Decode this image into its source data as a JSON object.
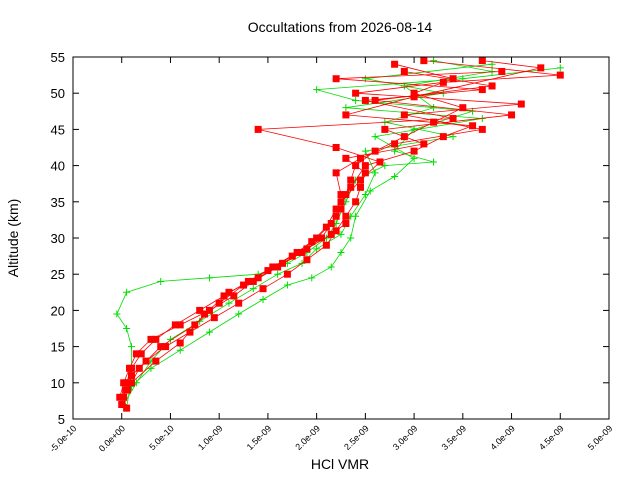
{
  "chart_data": {
    "type": "line",
    "title": "Occultations from 2026-08-14",
    "xlabel": "HCl VMR",
    "ylabel": "Altitude (km)",
    "xlim": [
      -5e-10,
      5e-09
    ],
    "ylim": [
      5,
      55
    ],
    "xticks": [
      -5e-10,
      0,
      5e-10,
      1e-09,
      1.5e-09,
      2e-09,
      2.5e-09,
      3e-09,
      3.5e-09,
      4e-09,
      4.5e-09,
      5e-09
    ],
    "xtick_labels": [
      "-5.0e-10",
      "0.0e+00",
      "5.0e-10",
      "1.0e-09",
      "1.5e-09",
      "2.0e-09",
      "2.5e-09",
      "3.0e-09",
      "3.5e-09",
      "4.0e-09",
      "4.5e-09",
      "5.0e-09"
    ],
    "yticks": [
      5,
      10,
      15,
      20,
      25,
      30,
      35,
      40,
      45,
      50,
      55
    ],
    "ytick_labels": [
      "5",
      "10",
      "15",
      "20",
      "25",
      "30",
      "35",
      "40",
      "45",
      "50",
      "55"
    ],
    "grid": false,
    "legend": "none",
    "series": [
      {
        "color": "#ff0000",
        "marker": "square",
        "profiles": [
          [
            [
              5e-11,
              6.5
            ],
            [
              2e-11,
              8
            ],
            [
              5e-11,
              10
            ],
            [
              1e-10,
              12
            ],
            [
              2e-10,
              14
            ],
            [
              3.5e-10,
              16
            ],
            [
              5.5e-10,
              18
            ],
            [
              8e-10,
              20
            ],
            [
              1.05e-09,
              22
            ],
            [
              1.3e-09,
              24
            ],
            [
              1.55e-09,
              26
            ],
            [
              1.8e-09,
              28
            ],
            [
              2e-09,
              30
            ],
            [
              2.15e-09,
              32
            ],
            [
              2.25e-09,
              34
            ],
            [
              2.3e-09,
              36
            ],
            [
              2.35e-09,
              38
            ],
            [
              2.4e-09,
              40
            ],
            [
              2.6e-09,
              42
            ],
            [
              2.9e-09,
              44
            ],
            [
              3.2e-09,
              46
            ],
            [
              3.5e-09,
              48
            ],
            [
              3e-09,
              50
            ],
            [
              3.4e-09,
              52
            ],
            [
              2.8e-09,
              54
            ]
          ],
          [
            [
              0.0,
              7
            ],
            [
              4e-11,
              9
            ],
            [
              1e-10,
              11
            ],
            [
              2.5e-10,
              13
            ],
            [
              4.5e-10,
              15
            ],
            [
              7e-10,
              17
            ],
            [
              9.5e-10,
              19
            ],
            [
              1.2e-09,
              21
            ],
            [
              1.45e-09,
              23
            ],
            [
              1.7e-09,
              25
            ],
            [
              1.9e-09,
              27
            ],
            [
              2.1e-09,
              29
            ],
            [
              2.2e-09,
              31
            ],
            [
              2.3e-09,
              33
            ],
            [
              2.4e-09,
              35
            ],
            [
              2.45e-09,
              37
            ],
            [
              2.5e-09,
              39
            ],
            [
              2.3e-09,
              41
            ],
            [
              3.1e-09,
              43
            ],
            [
              2.7e-09,
              45
            ],
            [
              4e-09,
              47
            ],
            [
              2.6e-09,
              49
            ],
            [
              3.8e-09,
              51
            ],
            [
              2.9e-09,
              53
            ]
          ],
          [
            [
              -2e-11,
              8
            ],
            [
              2e-11,
              10
            ],
            [
              8e-11,
              12
            ],
            [
              1.5e-10,
              14
            ],
            [
              3e-10,
              16
            ],
            [
              6e-10,
              18
            ],
            [
              9e-10,
              20
            ],
            [
              1.15e-09,
              22
            ],
            [
              1.35e-09,
              24
            ],
            [
              1.6e-09,
              26
            ],
            [
              1.85e-09,
              28
            ],
            [
              2.05e-09,
              30
            ],
            [
              2.2e-09,
              33
            ],
            [
              2.25e-09,
              36
            ],
            [
              2.2e-09,
              39
            ],
            [
              2.45e-09,
              41
            ],
            [
              2.8e-09,
              43
            ],
            [
              3.7e-09,
              45
            ],
            [
              2.9e-09,
              47
            ],
            [
              4.1e-09,
              48.5
            ],
            [
              2.4e-09,
              50
            ],
            [
              3.3e-09,
              51.5
            ],
            [
              4.5e-09,
              52.5
            ],
            [
              3.1e-09,
              54.5
            ]
          ],
          [
            [
              6e-11,
              9
            ],
            [
              1.8e-10,
              12
            ],
            [
              4e-10,
              15
            ],
            [
              7.5e-10,
              18
            ],
            [
              1e-09,
              21
            ],
            [
              1.25e-09,
              23.5
            ],
            [
              1.5e-09,
              25.5
            ],
            [
              1.75e-09,
              27.5
            ],
            [
              1.95e-09,
              29.5
            ],
            [
              2.1e-09,
              31.5
            ],
            [
              2.2e-09,
              34
            ],
            [
              2.35e-09,
              37
            ],
            [
              2.5e-09,
              40
            ],
            [
              3e-09,
              42
            ],
            [
              3.3e-09,
              44
            ],
            [
              3.6e-09,
              45.5
            ],
            [
              2.3e-09,
              47
            ],
            [
              3e-09,
              49.5
            ],
            [
              4.3e-09,
              53.5
            ],
            [
              3.7e-09,
              54.5
            ]
          ],
          [
            [
              1e-10,
              10
            ],
            [
              3.5e-10,
              13
            ],
            [
              6e-10,
              15.5
            ],
            [
              8.5e-10,
              19.5
            ],
            [
              1.1e-09,
              22.5
            ],
            [
              1.4e-09,
              24.5
            ],
            [
              1.65e-09,
              26.5
            ],
            [
              1.9e-09,
              28.5
            ],
            [
              2.15e-09,
              30.5
            ],
            [
              2.3e-09,
              32
            ],
            [
              2.25e-09,
              35
            ],
            [
              2.45e-09,
              38
            ],
            [
              2.65e-09,
              40.5
            ],
            [
              2.2e-09,
              42.5
            ],
            [
              1.4e-09,
              45
            ],
            [
              3.4e-09,
              46.5
            ],
            [
              2.5e-09,
              49
            ],
            [
              3.7e-09,
              50.5
            ],
            [
              2.2e-09,
              52
            ],
            [
              3.9e-09,
              53
            ]
          ]
        ]
      },
      {
        "color": "#00dd00",
        "marker": "plus",
        "profiles": [
          [
            [
              5e-11,
              6.5
            ],
            [
              8e-11,
              9
            ],
            [
              1e-10,
              12
            ],
            [
              1e-10,
              15
            ],
            [
              5e-11,
              17.5
            ],
            [
              -5e-11,
              19.5
            ],
            [
              5e-11,
              22.5
            ],
            [
              4e-10,
              24
            ],
            [
              9e-10,
              24.5
            ],
            [
              1.4e-09,
              25
            ],
            [
              1.7e-09,
              26.5
            ],
            [
              1.9e-09,
              28
            ],
            [
              2.1e-09,
              30
            ],
            [
              2.2e-09,
              32
            ],
            [
              2.3e-09,
              35
            ],
            [
              2.4e-09,
              38
            ],
            [
              2.7e-09,
              40
            ],
            [
              3.2e-09,
              40.5
            ],
            [
              2.8e-09,
              42
            ],
            [
              3e-09,
              45
            ],
            [
              3.6e-09,
              47.5
            ],
            [
              2.4e-09,
              49
            ],
            [
              2e-09,
              50.5
            ],
            [
              3.5e-09,
              52
            ],
            [
              4.5e-09,
              53.5
            ]
          ],
          [
            [
              2e-11,
              7
            ],
            [
              1.5e-10,
              10
            ],
            [
              3e-10,
              13
            ],
            [
              5e-10,
              16
            ],
            [
              8e-10,
              18.5
            ],
            [
              1.1e-09,
              21
            ],
            [
              1.35e-09,
              23
            ],
            [
              1.6e-09,
              25
            ],
            [
              1.85e-09,
              26.5
            ],
            [
              2e-09,
              28.5
            ],
            [
              2.25e-09,
              30.5
            ],
            [
              2.35e-09,
              33
            ],
            [
              2.5e-09,
              36
            ],
            [
              2.6e-09,
              39
            ],
            [
              2.5e-09,
              42
            ],
            [
              3.4e-09,
              44
            ],
            [
              2.7e-09,
              46
            ],
            [
              3.2e-09,
              48
            ],
            [
              2.9e-09,
              51
            ],
            [
              3.8e-09,
              53
            ],
            [
              3.2e-09,
              54.5
            ]
          ],
          [
            [
              1e-10,
              9.5
            ],
            [
              3e-10,
              12
            ],
            [
              6e-10,
              14.5
            ],
            [
              9e-10,
              17
            ],
            [
              1.2e-09,
              19.5
            ],
            [
              1.45e-09,
              21.5
            ],
            [
              1.7e-09,
              23.5
            ],
            [
              1.95e-09,
              24.5
            ],
            [
              2.15e-09,
              26
            ],
            [
              2.25e-09,
              28
            ],
            [
              2.35e-09,
              30
            ],
            [
              2.4e-09,
              33
            ],
            [
              2.55e-09,
              36.5
            ],
            [
              2.8e-09,
              38.5
            ],
            [
              3e-09,
              41
            ],
            [
              2.6e-09,
              44
            ],
            [
              3.7e-09,
              46.5
            ],
            [
              2.3e-09,
              48
            ],
            [
              3.3e-09,
              50
            ],
            [
              2.5e-09,
              52
            ],
            [
              3.8e-09,
              54
            ]
          ]
        ]
      }
    ]
  }
}
